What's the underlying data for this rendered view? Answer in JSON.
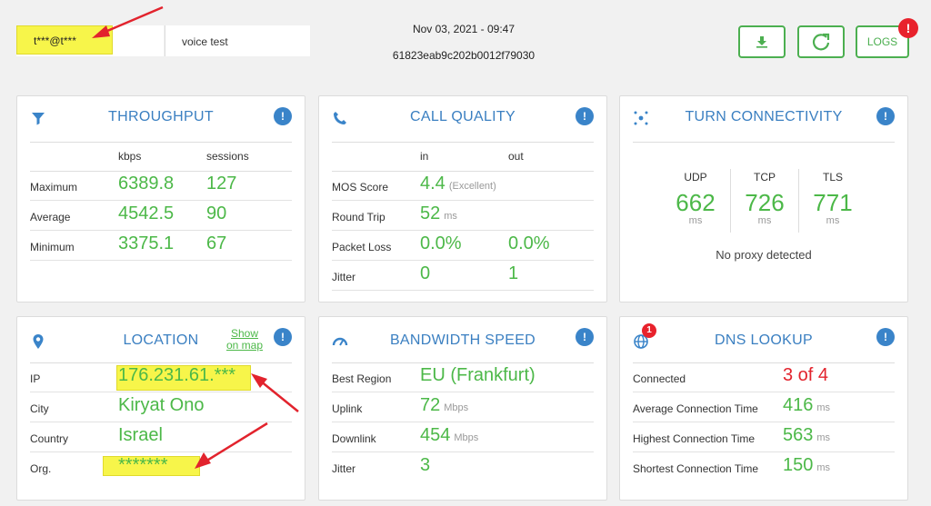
{
  "header": {
    "user": "t***@t***",
    "test_name": "voice test",
    "date": "Nov 03, 2021 - 09:47",
    "test_id": "61823eab9c202b0012f79030",
    "logs_label": "LOGS",
    "logs_badge": "!"
  },
  "throughput": {
    "title": "THROUGHPUT",
    "col1": "kbps",
    "col2": "sessions",
    "rows": [
      {
        "label": "Maximum",
        "kbps": "6389.8",
        "sessions": "127"
      },
      {
        "label": "Average",
        "kbps": "4542.5",
        "sessions": "90"
      },
      {
        "label": "Minimum",
        "kbps": "3375.1",
        "sessions": "67"
      }
    ]
  },
  "call_quality": {
    "title": "CALL QUALITY",
    "col1": "in",
    "col2": "out",
    "rows": [
      {
        "label": "MOS Score",
        "in": "4.4",
        "in_unit": "(Excellent)",
        "out": ""
      },
      {
        "label": "Round Trip",
        "in": "52",
        "in_unit": "ms",
        "out": ""
      },
      {
        "label": "Packet Loss",
        "in": "0.0%",
        "in_unit": "",
        "out": "0.0%"
      },
      {
        "label": "Jitter",
        "in": "0",
        "in_unit": "",
        "out": "1"
      }
    ]
  },
  "turn": {
    "title": "TURN CONNECTIVITY",
    "cols": [
      {
        "name": "UDP",
        "value": "662",
        "unit": "ms"
      },
      {
        "name": "TCP",
        "value": "726",
        "unit": "ms"
      },
      {
        "name": "TLS",
        "value": "771",
        "unit": "ms"
      }
    ],
    "proxy": "No proxy detected"
  },
  "location": {
    "title": "LOCATION",
    "show_map_1": "Show",
    "show_map_2": "on map",
    "rows": [
      {
        "label": "IP",
        "value": "176.231.61.***"
      },
      {
        "label": "City",
        "value": "Kiryat Ono"
      },
      {
        "label": "Country",
        "value": "Israel"
      },
      {
        "label": "Org.",
        "value": "*******"
      }
    ]
  },
  "bandwidth": {
    "title": "BANDWIDTH SPEED",
    "rows": [
      {
        "label": "Best Region",
        "value": "EU (Frankfurt)",
        "unit": ""
      },
      {
        "label": "Uplink",
        "value": "72",
        "unit": "Mbps"
      },
      {
        "label": "Downlink",
        "value": "454",
        "unit": "Mbps"
      },
      {
        "label": "Jitter",
        "value": "3",
        "unit": ""
      }
    ]
  },
  "dns": {
    "title": "DNS LOOKUP",
    "badge": "1",
    "rows": [
      {
        "label": "Connected",
        "value": "3 of 4",
        "unit": ""
      },
      {
        "label": "Average Connection Time",
        "value": "416",
        "unit": "ms"
      },
      {
        "label": "Highest Connection Time",
        "value": "563",
        "unit": "ms"
      },
      {
        "label": "Shortest Connection Time",
        "value": "150",
        "unit": "ms"
      }
    ]
  },
  "info_label": "!",
  "colors": {
    "accent": "#3a7fc1",
    "value": "#4cb848",
    "alert": "#e2232d",
    "highlight": "#f7f54a"
  }
}
